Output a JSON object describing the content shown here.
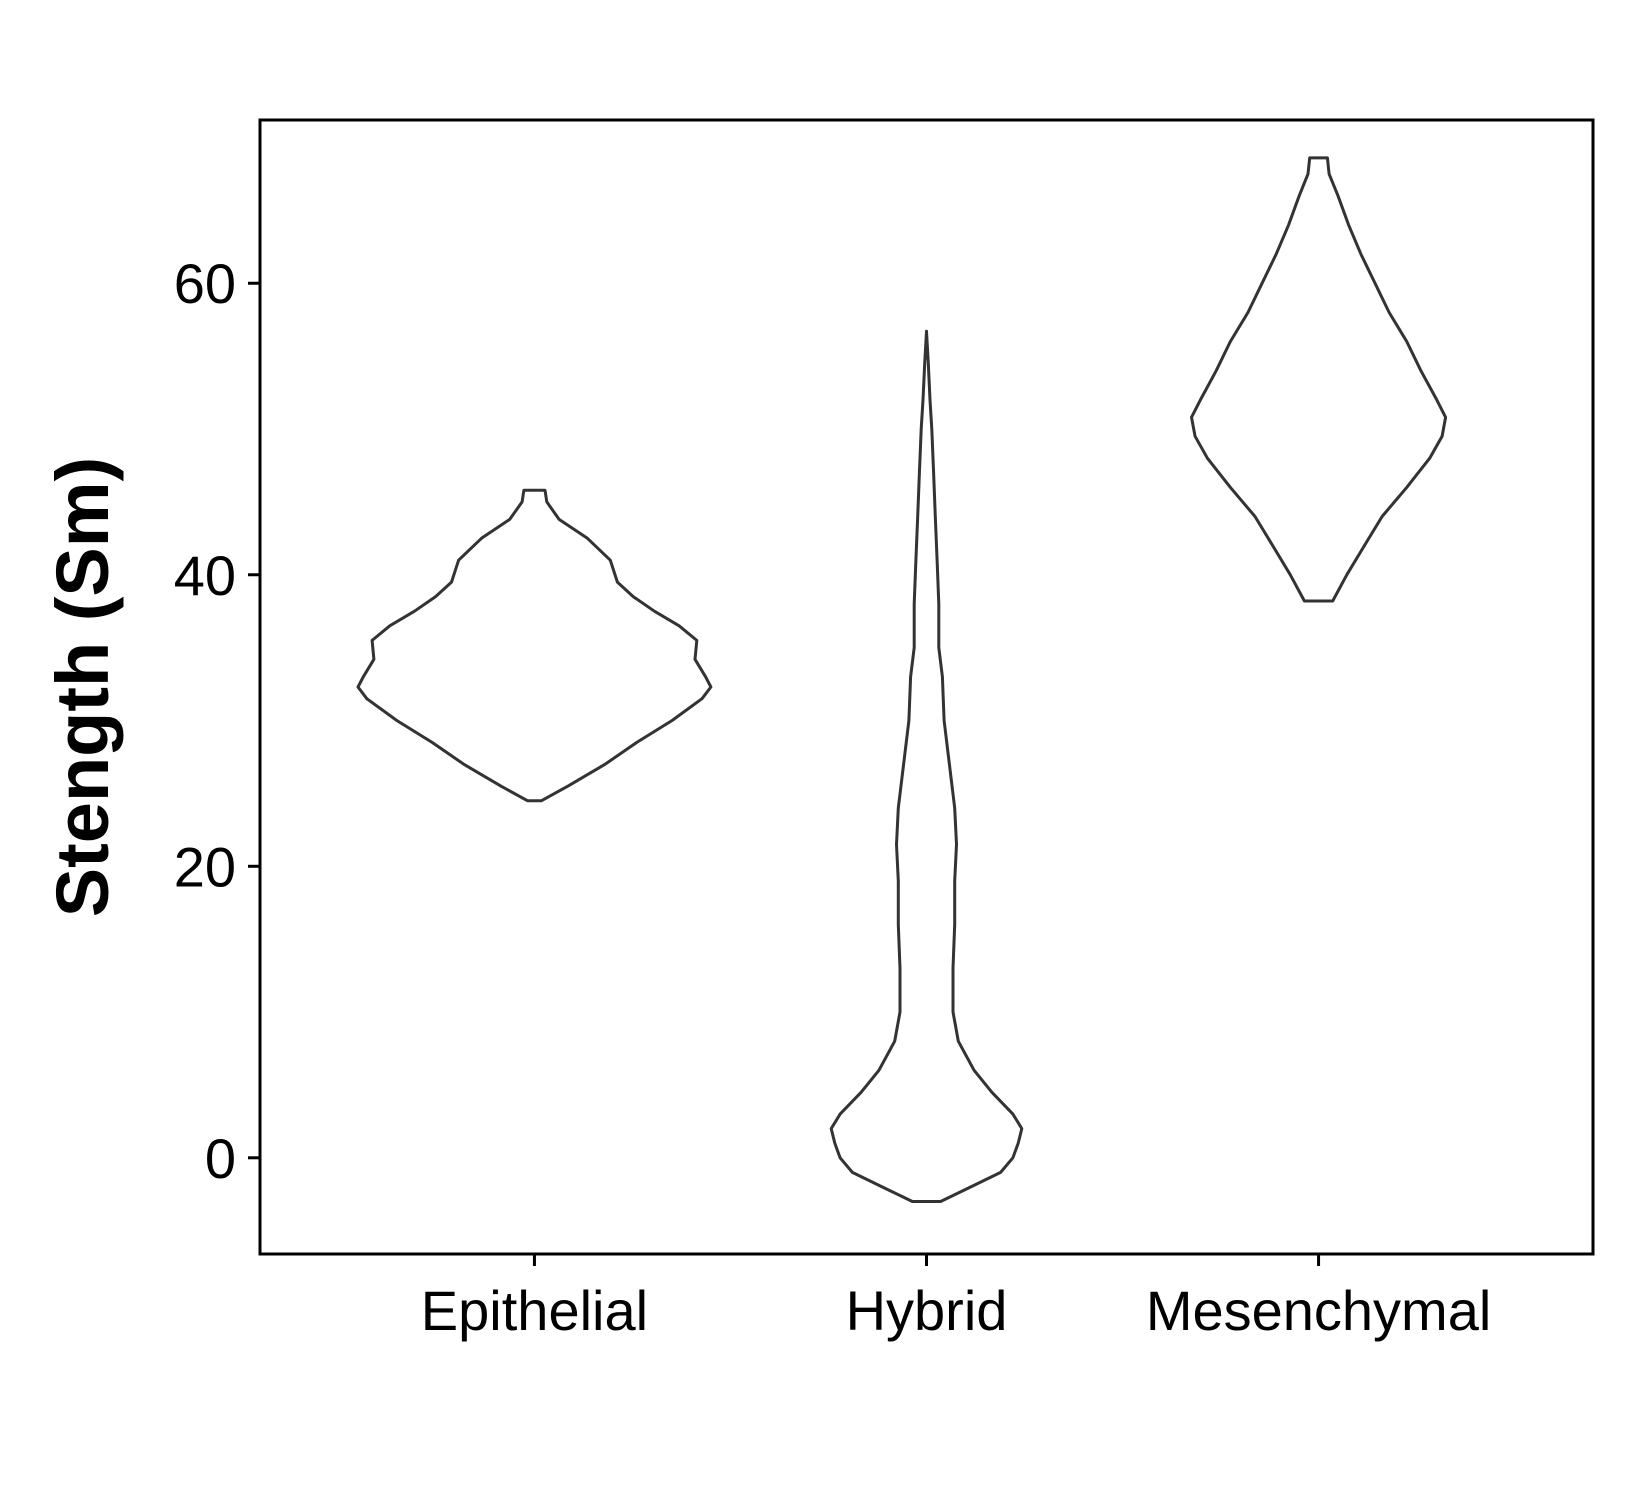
{
  "chart_data": {
    "type": "violin",
    "title": "",
    "xlabel": "",
    "ylabel": "Stength (Sm)",
    "ylim": [
      -6.6,
      71.2
    ],
    "yticks": [
      0,
      20,
      40,
      60
    ],
    "grid": false,
    "legend": "none",
    "categories": [
      "Epithelial",
      "Hybrid",
      "Mesenchymal"
    ],
    "series": [
      {
        "category": "Epithelial",
        "min": 24.5,
        "max": 45.8,
        "profile": [
          [
            24.5,
            0.04
          ],
          [
            25.5,
            0.19
          ],
          [
            27.0,
            0.4
          ],
          [
            28.5,
            0.58
          ],
          [
            30.0,
            0.78
          ],
          [
            31.5,
            0.95
          ],
          [
            32.3,
            1.0
          ],
          [
            33.0,
            0.97
          ],
          [
            34.2,
            0.91
          ],
          [
            35.5,
            0.92
          ],
          [
            36.5,
            0.82
          ],
          [
            37.5,
            0.68
          ],
          [
            38.5,
            0.56
          ],
          [
            39.5,
            0.47
          ],
          [
            41.0,
            0.43
          ],
          [
            42.5,
            0.3
          ],
          [
            43.8,
            0.14
          ],
          [
            45.0,
            0.07
          ],
          [
            45.8,
            0.06
          ]
        ]
      },
      {
        "category": "Hybrid",
        "min": -3.0,
        "max": 56.7,
        "profile": [
          [
            -3.0,
            0.08
          ],
          [
            -2.0,
            0.25
          ],
          [
            -1.0,
            0.42
          ],
          [
            0.0,
            0.49
          ],
          [
            1.0,
            0.52
          ],
          [
            2.0,
            0.54
          ],
          [
            3.0,
            0.49
          ],
          [
            4.5,
            0.37
          ],
          [
            6.0,
            0.27
          ],
          [
            8.0,
            0.18
          ],
          [
            10.0,
            0.15
          ],
          [
            13.0,
            0.15
          ],
          [
            16.0,
            0.16
          ],
          [
            19.0,
            0.16
          ],
          [
            21.5,
            0.17
          ],
          [
            24.0,
            0.16
          ],
          [
            27.0,
            0.13
          ],
          [
            30.0,
            0.1
          ],
          [
            33.0,
            0.09
          ],
          [
            35.0,
            0.07
          ],
          [
            38.0,
            0.07
          ],
          [
            41.0,
            0.06
          ],
          [
            44.0,
            0.05
          ],
          [
            47.0,
            0.04
          ],
          [
            50.0,
            0.03
          ],
          [
            52.0,
            0.02
          ],
          [
            54.5,
            0.01
          ],
          [
            56.7,
            0.0
          ]
        ]
      },
      {
        "category": "Mesenchymal",
        "min": 38.2,
        "max": 68.6,
        "profile": [
          [
            38.2,
            0.08
          ],
          [
            40.0,
            0.16
          ],
          [
            42.0,
            0.26
          ],
          [
            44.0,
            0.36
          ],
          [
            46.0,
            0.5
          ],
          [
            48.0,
            0.63
          ],
          [
            49.5,
            0.7
          ],
          [
            50.8,
            0.72
          ],
          [
            52.0,
            0.67
          ],
          [
            54.0,
            0.58
          ],
          [
            56.0,
            0.5
          ],
          [
            58.0,
            0.4
          ],
          [
            60.0,
            0.32
          ],
          [
            62.0,
            0.24
          ],
          [
            64.0,
            0.17
          ],
          [
            66.0,
            0.11
          ],
          [
            67.5,
            0.06
          ],
          [
            68.6,
            0.05
          ]
        ]
      }
    ]
  }
}
